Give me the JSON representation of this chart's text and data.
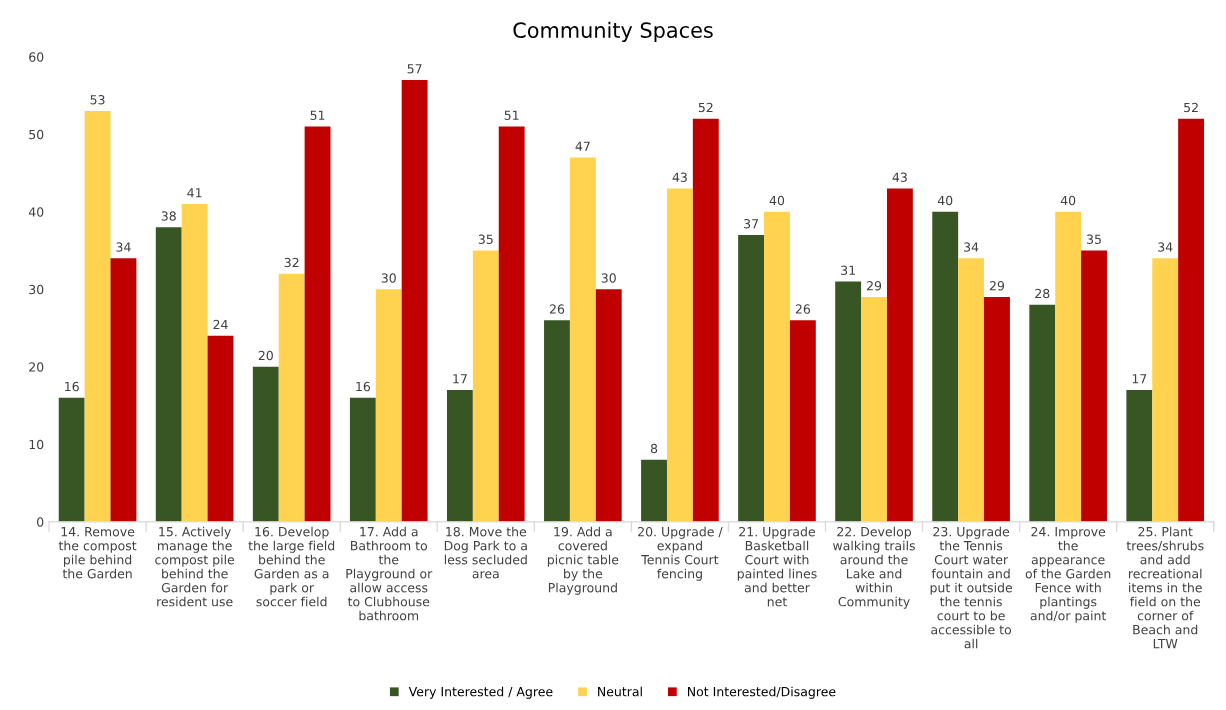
{
  "chart_data": {
    "type": "bar",
    "title": "Community Spaces",
    "categories": [
      "14. Remove\nthe compost\npile behind\nthe Garden",
      "15. Actively\nmanage the\ncompost pile\nbehind the\nGarden for\nresident use",
      "16. Develop\nthe large field\nbehind the\nGarden as a\npark or\nsoccer field",
      "17. Add a\nBathroom to\nthe\nPlayground or\nallow access\nto Clubhouse\nbathroom",
      "18. Move the\nDog Park to a\nless secluded\narea",
      "19. Add a\ncovered\npicnic table\nby the\nPlayground",
      "20. Upgrade /\nexpand\nTennis Court\nfencing",
      "21. Upgrade\nBasketball\nCourt with\npainted lines\nand better\nnet",
      "22. Develop\nwalking trails\naround the\nLake and\nwithin\nCommunity",
      "23. Upgrade\nthe Tennis\nCourt water\nfountain and\nput it outside\nthe tennis\ncourt to be\naccessible to\nall",
      "24. Improve\nthe\nappearance\nof the Garden\nFence with\nplantings\nand/or paint",
      "25. Plant\ntrees/shrubs\nand add\nrecreational\nitems in the\nfield on the\ncorner of\nBeach and\nLTW"
    ],
    "series": [
      {
        "name": "Very Interested / Agree",
        "color": "#375623",
        "values": [
          16,
          38,
          20,
          16,
          17,
          26,
          8,
          37,
          31,
          40,
          28,
          17
        ]
      },
      {
        "name": "Neutral",
        "color": "#ffd34f",
        "values": [
          53,
          41,
          32,
          30,
          35,
          47,
          43,
          40,
          29,
          34,
          40,
          34
        ]
      },
      {
        "name": "Not Interested/Disagree",
        "color": "#c00000",
        "values": [
          34,
          24,
          51,
          57,
          51,
          30,
          52,
          26,
          43,
          29,
          35,
          52
        ]
      }
    ],
    "ylim": [
      0,
      60
    ],
    "yticks": [
      0,
      10,
      20,
      30,
      40,
      50,
      60
    ],
    "grid": false,
    "legend": "bottom",
    "data_labels": true
  }
}
